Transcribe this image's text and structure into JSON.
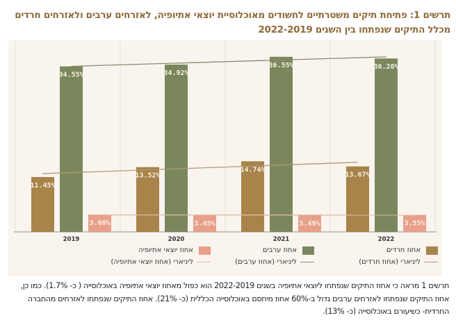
{
  "title": "תרשים 1: פתיחת תיקים משטרתיים לחשודים מאוכלוסיית יוצאי אתיופיה, לאזרחים ערבים ולאזרחים חרדים מכלל התיקים שנפתחו בין השנים 2022-2019",
  "chart_data": {
    "type": "bar",
    "title": "תרשים 1: פתיחת תיקים משטרתיים לחשודים מאוכלוסיית יוצאי אתיופיה, לאזרחים ערבים ולאזרחים חרדים מכלל התיקים שנפתחו בין השנים 2022-2019",
    "xlabel": "",
    "ylabel": "",
    "ylim": [
      0,
      40
    ],
    "grid": "vertical separators between year groups",
    "categories": [
      "2019",
      "2020",
      "2021",
      "2022"
    ],
    "series": [
      {
        "name": "אחוז חרדים",
        "color": "#a8834a",
        "values": [
          11.45,
          13.52,
          14.74,
          13.67
        ],
        "labels": [
          "11.45%",
          "13.52%",
          "14.74%",
          "13.67%"
        ]
      },
      {
        "name": "אחוז ערבים",
        "color": "#7a875c",
        "values": [
          34.55,
          34.92,
          36.55,
          36.2
        ],
        "labels": [
          "34.55%",
          "34.92%",
          "36.55%",
          "36.20%"
        ]
      },
      {
        "name": "אחוז יוצאי אתיופיה",
        "color": "#e8a08a",
        "values": [
          3.6,
          3.45,
          3.49,
          3.55
        ],
        "labels": [
          "3.60%",
          "3.45%",
          "3.49%",
          "3.55%"
        ]
      }
    ],
    "trendlines": [
      {
        "name": "ליניארי (אחוז חרדים)",
        "series": 0,
        "color": "#b09a78"
      },
      {
        "name": "ליניארי (אחוז ערבים)",
        "series": 1,
        "color": "#8c8a70"
      },
      {
        "name": "ליניארי (אחוז יוצאי אתיופיה)",
        "series": 2,
        "color": "#e2b7a4"
      }
    ],
    "legend_position": "bottom"
  },
  "legend": {
    "items": [
      {
        "label": "אחוז חרדים",
        "color": "#a8834a"
      },
      {
        "label": "אחוז ערבים",
        "color": "#7a875c"
      },
      {
        "label": "אחוז יוצאי אתיופיה",
        "color": "#e8a08a"
      }
    ],
    "lines": [
      {
        "label": "ליניארי (אחוז חרדים)",
        "color": "#b09a78"
      },
      {
        "label": "ליניארי (אחוז ערבים)",
        "color": "#8c8a70"
      },
      {
        "label": "ליניארי (אחוז יוצאי אתיופיה)",
        "color": "#e2b7a4"
      }
    ]
  },
  "caption": "תרשים 1 מראה כי אחוז התיקים שנפתחו ליוצאי אתיופיה בשנים 2022-2019 הוא כפול מאחוז יוצאי אתיופיה באוכלוסייה ( כ- 1.7%). כמו כן, אחוז התיקים שנפתחו לאזרחים ערבים גדול ב-60% אחוז מיחסם באוכלוסייה הכללית (כ- 21%). אחוז התיקים שנפתחו לאזרחים מהחברה החרדית- כשיעורם באוכלוסייה (כ- 13%)."
}
